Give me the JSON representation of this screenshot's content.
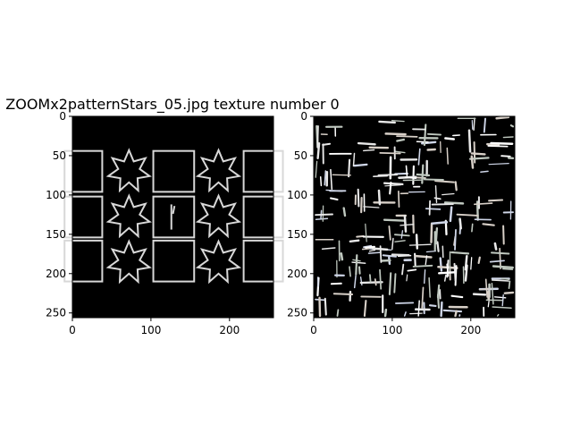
{
  "chart_data": [
    {
      "type": "image",
      "title": "ZOOMx2patternStars_05.jpg texture number 0",
      "x_ticks": [
        0,
        100,
        200
      ],
      "y_ticks": [
        0,
        50,
        100,
        150,
        200,
        250
      ],
      "xlim": [
        0,
        256
      ],
      "ylim": [
        256,
        0
      ],
      "content": "pattern-stars"
    },
    {
      "type": "image",
      "title": "",
      "x_ticks": [
        0,
        100,
        200
      ],
      "y_ticks": [
        0,
        50,
        100,
        150,
        200,
        250
      ],
      "xlim": [
        0,
        256
      ],
      "ylim": [
        256,
        0
      ],
      "content": "texture-noise"
    }
  ],
  "colors": {
    "image_background": "#000000",
    "stroke": "#d8d8d8"
  }
}
